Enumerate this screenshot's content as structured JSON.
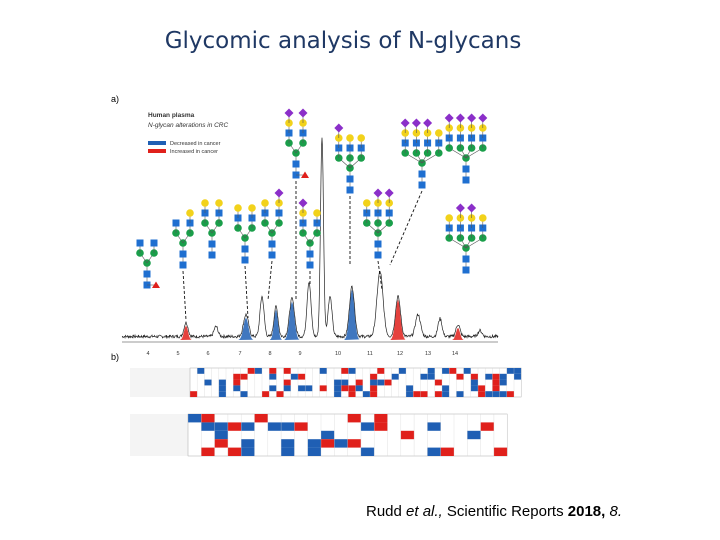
{
  "title": "Glycomic analysis of N-glycans",
  "panels": [
    {
      "label": "a)"
    },
    {
      "label": "b)"
    }
  ],
  "figure": {
    "legend": {
      "title": "Human plasma",
      "subtitle": "N-glycan alterations in CRC",
      "items": [
        "Decreased in cancer",
        "Increased in cancer"
      ]
    },
    "x_axis_labels": [
      "4",
      "5",
      "6",
      "7",
      "8",
      "9",
      "10",
      "11",
      "12",
      "13",
      "14"
    ]
  },
  "citation": {
    "author": "Rudd",
    "etal": "et al.,",
    "journal": "Scientific Reports",
    "year": "2018,",
    "volume": "8."
  }
}
